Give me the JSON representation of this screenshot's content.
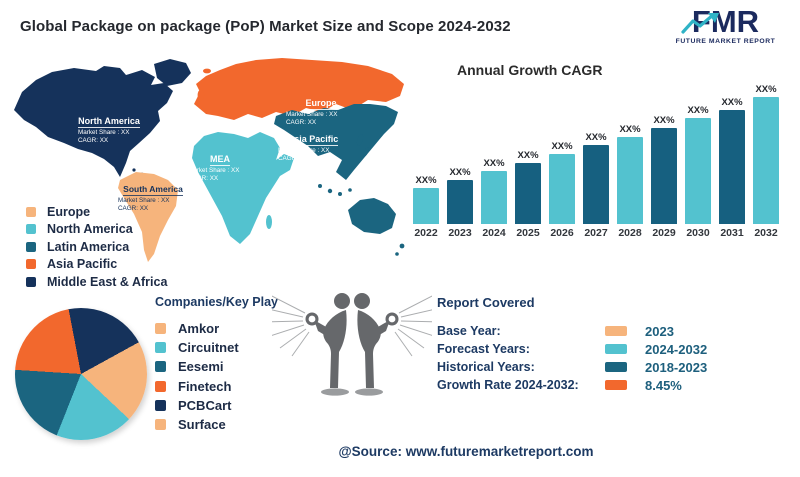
{
  "header": {
    "title": "Global Package on package (PoP) Market Size and Scope 2024-2032",
    "logo": {
      "word": "FMR",
      "subtext": "FUTURE MARKET REPORT"
    }
  },
  "colors": {
    "navy": "#15325b",
    "orange": "#f2682d",
    "peach": "#f6b47c",
    "light_teal": "#53c2cf",
    "dark_teal": "#1b6580",
    "bar_light": "#53c2cf",
    "bar_dark": "#166080",
    "figure_gray": "#66686b",
    "value_teal": "#1d5f7d"
  },
  "map": {
    "regions": [
      {
        "id": "north-america",
        "name": "North America",
        "share": "Market Share : XX",
        "cagr": "CAGR: XX"
      },
      {
        "id": "south-america",
        "name": "South America",
        "share": "Market Share : XX",
        "cagr": "CAGR: XX"
      },
      {
        "id": "europe",
        "name": "Europe",
        "share": "Market Share : XX",
        "cagr": "CAGR: XX"
      },
      {
        "id": "mea",
        "name": "MEA",
        "share": "Market Share : XX",
        "cagr": "CAGR: XX"
      },
      {
        "id": "asia-pacific",
        "name": "Asia Pacific",
        "share": "Market Share : XX",
        "cagr": "CAGR: XX"
      }
    ],
    "legend": [
      {
        "label": "Europe",
        "color": "#f6b47c"
      },
      {
        "label": "North America",
        "color": "#53c2cf"
      },
      {
        "label": "Latin America",
        "color": "#1b6580"
      },
      {
        "label": "Asia Pacific",
        "color": "#f2682d"
      },
      {
        "label": "Middle East & Africa",
        "color": "#15325b"
      }
    ]
  },
  "chart_data": [
    {
      "type": "bar",
      "title": "Annual Growth CAGR",
      "categories": [
        "2022",
        "2023",
        "2024",
        "2025",
        "2026",
        "2027",
        "2028",
        "2029",
        "2030",
        "2031",
        "2032"
      ],
      "values": [
        36,
        44,
        53,
        61,
        70,
        79,
        87,
        96,
        106,
        114,
        127
      ],
      "bar_labels": [
        "XX%",
        "XX%",
        "XX%",
        "XX%",
        "XX%",
        "XX%",
        "XX%",
        "XX%",
        "XX%",
        "XX%",
        "XX%"
      ],
      "bar_colors_alternating": [
        "#53c2cf",
        "#166080"
      ],
      "xlabel": "",
      "ylabel": "",
      "ylim": [
        0,
        140
      ],
      "grid": false,
      "legend_position": "none",
      "note": "values are relative bar heights; data labels show XX% placeholders"
    },
    {
      "type": "pie",
      "title": "Companies/Key Play",
      "slices": [
        {
          "label": "Amkor",
          "value": 12,
          "color": "#f6b47c"
        },
        {
          "label": "Circuitnet",
          "value": 19,
          "color": "#53c2cf"
        },
        {
          "label": "Eesemi",
          "value": 20,
          "color": "#1b6580"
        },
        {
          "label": "Finetech",
          "value": 21,
          "color": "#f2682d"
        },
        {
          "label": "PCBCart",
          "value": 20,
          "color": "#15325b"
        },
        {
          "label": "Surface",
          "value": 8,
          "color": "#f6b47c"
        }
      ],
      "legend_position": "right"
    }
  ],
  "report": {
    "title": "Report Covered",
    "rows": [
      {
        "label": "Base Year:",
        "value": "2023",
        "color": "#f6b47c"
      },
      {
        "label": "Forecast Years:",
        "value": "2024-2032",
        "color": "#53c2cf"
      },
      {
        "label": "Historical Years:",
        "value": "2018-2023",
        "color": "#1b6580"
      },
      {
        "label": "Growth Rate 2024-2032:",
        "value": "8.45%",
        "color": "#f2682d"
      }
    ]
  },
  "footer": {
    "source": "@Source: www.futuremarketreport.com"
  }
}
